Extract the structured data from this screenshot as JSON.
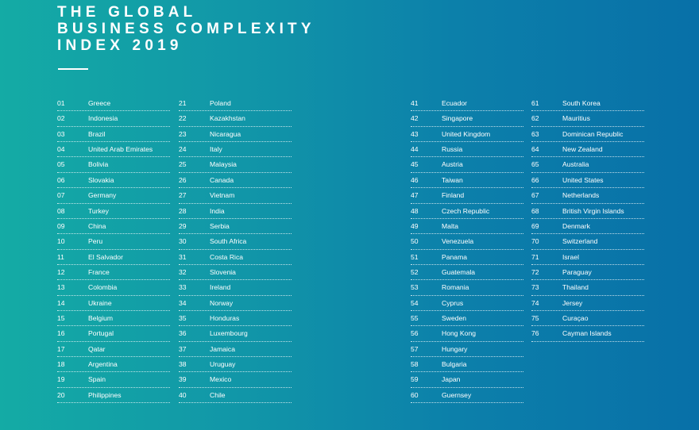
{
  "title": {
    "lines": [
      "THE GLOBAL",
      "BUSINESS COMPLEXITY",
      "INDEX 2019"
    ]
  },
  "colors": {
    "gradient_left": "#14aba5",
    "gradient_right": "#0870a8",
    "text": "#ffffff"
  },
  "columns": [
    [
      {
        "rank": "01",
        "country": "Greece"
      },
      {
        "rank": "02",
        "country": "Indonesia"
      },
      {
        "rank": "03",
        "country": "Brazil"
      },
      {
        "rank": "04",
        "country": "United Arab Emirates"
      },
      {
        "rank": "05",
        "country": "Bolivia"
      },
      {
        "rank": "06",
        "country": "Slovakia"
      },
      {
        "rank": "07",
        "country": "Germany"
      },
      {
        "rank": "08",
        "country": "Turkey"
      },
      {
        "rank": "09",
        "country": "China"
      },
      {
        "rank": "10",
        "country": "Peru"
      },
      {
        "rank": "11",
        "country": "El Salvador"
      },
      {
        "rank": "12",
        "country": "France"
      },
      {
        "rank": "13",
        "country": "Colombia"
      },
      {
        "rank": "14",
        "country": "Ukraine"
      },
      {
        "rank": "15",
        "country": "Belgium"
      },
      {
        "rank": "16",
        "country": "Portugal"
      },
      {
        "rank": "17",
        "country": "Qatar"
      },
      {
        "rank": "18",
        "country": "Argentina"
      },
      {
        "rank": "19",
        "country": "Spain"
      },
      {
        "rank": "20",
        "country": "Philippines"
      }
    ],
    [
      {
        "rank": "21",
        "country": "Poland"
      },
      {
        "rank": "22",
        "country": "Kazakhstan"
      },
      {
        "rank": "23",
        "country": "Nicaragua"
      },
      {
        "rank": "24",
        "country": "Italy"
      },
      {
        "rank": "25",
        "country": "Malaysia"
      },
      {
        "rank": "26",
        "country": "Canada"
      },
      {
        "rank": "27",
        "country": "Vietnam"
      },
      {
        "rank": "28",
        "country": "India"
      },
      {
        "rank": "29",
        "country": "Serbia"
      },
      {
        "rank": "30",
        "country": "South Africa"
      },
      {
        "rank": "31",
        "country": "Costa Rica"
      },
      {
        "rank": "32",
        "country": "Slovenia"
      },
      {
        "rank": "33",
        "country": "Ireland"
      },
      {
        "rank": "34",
        "country": "Norway"
      },
      {
        "rank": "35",
        "country": "Honduras"
      },
      {
        "rank": "36",
        "country": "Luxembourg"
      },
      {
        "rank": "37",
        "country": "Jamaica"
      },
      {
        "rank": "38",
        "country": "Uruguay"
      },
      {
        "rank": "39",
        "country": "Mexico"
      },
      {
        "rank": "40",
        "country": "Chile"
      }
    ],
    [
      {
        "rank": "41",
        "country": "Ecuador"
      },
      {
        "rank": "42",
        "country": "Singapore"
      },
      {
        "rank": "43",
        "country": "United Kingdom"
      },
      {
        "rank": "44",
        "country": "Russia"
      },
      {
        "rank": "45",
        "country": "Austria"
      },
      {
        "rank": "46",
        "country": "Taiwan"
      },
      {
        "rank": "47",
        "country": "Finland"
      },
      {
        "rank": "48",
        "country": "Czech Republic"
      },
      {
        "rank": "49",
        "country": "Malta"
      },
      {
        "rank": "50",
        "country": "Venezuela"
      },
      {
        "rank": "51",
        "country": "Panama"
      },
      {
        "rank": "52",
        "country": "Guatemala"
      },
      {
        "rank": "53",
        "country": "Romania"
      },
      {
        "rank": "54",
        "country": "Cyprus"
      },
      {
        "rank": "55",
        "country": "Sweden"
      },
      {
        "rank": "56",
        "country": "Hong Kong"
      },
      {
        "rank": "57",
        "country": "Hungary"
      },
      {
        "rank": "58",
        "country": "Bulgaria"
      },
      {
        "rank": "59",
        "country": "Japan"
      },
      {
        "rank": "60",
        "country": "Guernsey"
      }
    ],
    [
      {
        "rank": "61",
        "country": "South Korea"
      },
      {
        "rank": "62",
        "country": "Mauritius"
      },
      {
        "rank": "63",
        "country": "Dominican Republic"
      },
      {
        "rank": "64",
        "country": "New Zealand"
      },
      {
        "rank": "65",
        "country": "Australia"
      },
      {
        "rank": "66",
        "country": "United States"
      },
      {
        "rank": "67",
        "country": "Netherlands"
      },
      {
        "rank": "68",
        "country": "British Virgin Islands"
      },
      {
        "rank": "69",
        "country": "Denmark"
      },
      {
        "rank": "70",
        "country": "Switzerland"
      },
      {
        "rank": "71",
        "country": "Israel"
      },
      {
        "rank": "72",
        "country": "Paraguay"
      },
      {
        "rank": "73",
        "country": "Thailand"
      },
      {
        "rank": "74",
        "country": "Jersey"
      },
      {
        "rank": "75",
        "country": "Curaçao"
      },
      {
        "rank": "76",
        "country": "Cayman Islands"
      }
    ]
  ]
}
